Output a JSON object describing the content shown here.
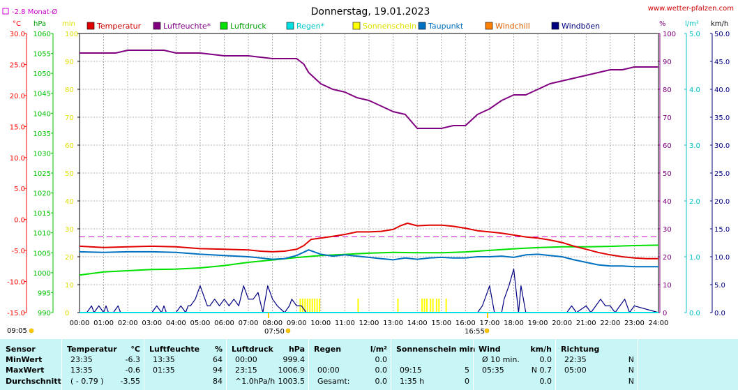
{
  "header": {
    "title": "Donnerstag, 19.01.2023",
    "website": "www.wetter-pfalzen.com",
    "month_avg_label": "-2.8 Monat-Ø"
  },
  "units": {
    "celsius": "°C",
    "hpa": "hPa",
    "min": "min",
    "percent": "%",
    "lm2": "l/m²",
    "kmh": "km/h"
  },
  "colors": {
    "Temperatur": "#e00000",
    "Luftfeuchte": "#800080",
    "Luftdruck": "#00e000",
    "Regen": "#00e0e0",
    "Sonnenschein": "#ffff00",
    "Taupunkt": "#0070c0",
    "Windchill": "#ff8000",
    "Windboeen": "#000080"
  },
  "chart_data": {
    "type": "line",
    "title": "Donnerstag, 19.01.2023",
    "legend": [
      "Temperatur",
      "Luftfeuchte*",
      "Luftdruck",
      "Regen*",
      "Sonnenschein",
      "Taupunkt",
      "Windchill",
      "Windböen"
    ],
    "x_ticks": [
      "00:00",
      "01:00",
      "02:00",
      "03:00",
      "04:00",
      "05:00",
      "06:00",
      "07:00",
      "08:00",
      "09:00",
      "10:00",
      "11:00",
      "12:00",
      "13:00",
      "14:00",
      "15:00",
      "16:00",
      "17:00",
      "18:00",
      "19:00",
      "20:00",
      "21:00",
      "22:00",
      "23:00",
      "24:00"
    ],
    "axes": {
      "celsius": {
        "range": [
          -15,
          30
        ],
        "ticks": [
          "30.0",
          "25.0",
          "20.0",
          "15.0",
          "10.0",
          "5.0",
          "0.0",
          "-5.0",
          "-10.0",
          "-15.0"
        ]
      },
      "hpa": {
        "range": [
          990,
          1060
        ],
        "ticks": [
          "1060",
          "1055",
          "1050",
          "1045",
          "1040",
          "1035",
          "1030",
          "1025",
          "1020",
          "1015",
          "1010",
          "1005",
          "1000",
          "995",
          "990"
        ]
      },
      "min": {
        "range": [
          0,
          100
        ],
        "ticks": [
          "100",
          "90",
          "80",
          "70",
          "60",
          "50",
          "40",
          "30",
          "20",
          "10",
          "0"
        ]
      },
      "percent": {
        "range": [
          0,
          100
        ],
        "ticks": [
          "100",
          "90",
          "80",
          "70",
          "60",
          "50",
          "40",
          "30",
          "20",
          "10",
          "0"
        ]
      },
      "lm2": {
        "range": [
          0,
          5
        ],
        "ticks": [
          "5.0",
          "4.0",
          "3.0",
          "2.0",
          "1.0",
          "0.0"
        ]
      },
      "kmh": {
        "range": [
          0,
          50
        ],
        "ticks": [
          "50.0",
          "45.0",
          "40.0",
          "35.0",
          "30.0",
          "25.0",
          "20.0",
          "15.0",
          "10.0",
          "5.0",
          "0.0"
        ]
      }
    },
    "month_avg_c": -2.8,
    "series": [
      {
        "name": "Temperatur",
        "axis": "celsius",
        "x": [
          0,
          1,
          2,
          3,
          4,
          5,
          6,
          7,
          7.5,
          8,
          8.5,
          9,
          9.3,
          9.6,
          10,
          10.5,
          11,
          11.5,
          12,
          12.5,
          13,
          13.3,
          13.6,
          14,
          14.5,
          15,
          15.5,
          16,
          16.5,
          17,
          17.5,
          18,
          18.5,
          19,
          19.5,
          20,
          20.5,
          21,
          21.5,
          22,
          22.5,
          23,
          23.5,
          24
        ],
        "y": [
          -4.3,
          -4.5,
          -4.4,
          -4.3,
          -4.4,
          -4.7,
          -4.8,
          -4.9,
          -5.1,
          -5.2,
          -5.1,
          -4.8,
          -4.2,
          -3.2,
          -3.0,
          -2.7,
          -2.4,
          -2.0,
          -2.0,
          -1.9,
          -1.6,
          -1.0,
          -0.6,
          -1.0,
          -0.9,
          -0.9,
          -1.1,
          -1.4,
          -1.8,
          -2.0,
          -2.2,
          -2.5,
          -2.8,
          -3.0,
          -3.3,
          -3.7,
          -4.3,
          -4.8,
          -5.3,
          -5.7,
          -6.0,
          -6.2,
          -6.3,
          -6.3
        ]
      },
      {
        "name": "Luftfeuchte*",
        "axis": "percent",
        "x": [
          0,
          1,
          1.5,
          2,
          2.5,
          3,
          3.5,
          4,
          5,
          6,
          7,
          8,
          9,
          9.3,
          9.5,
          10,
          10.5,
          11,
          11.5,
          12,
          12.5,
          13,
          13.5,
          14,
          14.5,
          15,
          15.5,
          16,
          16.5,
          17,
          17.5,
          18,
          18.5,
          19,
          19.5,
          20,
          20.5,
          21,
          21.5,
          22,
          22.5,
          23,
          24
        ],
        "y": [
          93,
          93,
          93,
          94,
          94,
          94,
          94,
          93,
          93,
          92,
          92,
          91,
          91,
          89,
          86,
          82,
          80,
          79,
          77,
          76,
          74,
          72,
          71,
          66,
          66,
          66,
          67,
          67,
          71,
          73,
          76,
          78,
          78,
          80,
          82,
          83,
          84,
          85,
          86,
          87,
          87,
          88,
          88
        ]
      },
      {
        "name": "Luftdruck",
        "axis": "hpa",
        "x": [
          0,
          1,
          2,
          3,
          4,
          5,
          6,
          7,
          8,
          9,
          10,
          11,
          12,
          13,
          14,
          15,
          16,
          17,
          18,
          19,
          20,
          21,
          22,
          23,
          24
        ],
        "y": [
          999.4,
          1000.2,
          1000.5,
          1000.8,
          1000.9,
          1001.2,
          1001.8,
          1002.6,
          1003.2,
          1003.8,
          1004.3,
          1004.6,
          1004.9,
          1005.1,
          1005.0,
          1005.0,
          1005.2,
          1005.6,
          1006.0,
          1006.3,
          1006.5,
          1006.5,
          1006.6,
          1006.8,
          1006.9
        ]
      },
      {
        "name": "Regen*",
        "axis": "lm2",
        "x": [
          0,
          24
        ],
        "y": [
          0,
          0
        ]
      },
      {
        "name": "Taupunkt",
        "axis": "celsius",
        "x": [
          0,
          1,
          2,
          3,
          4,
          5,
          6,
          7,
          7.5,
          8,
          8.5,
          9,
          9.5,
          10,
          10.5,
          11,
          11.5,
          12,
          12.5,
          13,
          13.5,
          14,
          14.5,
          15,
          15.5,
          16,
          16.5,
          17,
          17.5,
          18,
          18.5,
          19,
          19.5,
          20,
          20.5,
          21,
          21.5,
          22,
          22.5,
          23,
          24
        ],
        "y": [
          -5.2,
          -5.3,
          -5.2,
          -5.2,
          -5.3,
          -5.6,
          -5.8,
          -6.0,
          -6.2,
          -6.4,
          -6.3,
          -5.8,
          -4.9,
          -5.6,
          -5.9,
          -5.7,
          -5.9,
          -6.1,
          -6.3,
          -6.5,
          -6.2,
          -6.4,
          -6.2,
          -6.1,
          -6.2,
          -6.2,
          -6.0,
          -6.0,
          -5.9,
          -6.1,
          -5.7,
          -5.6,
          -5.8,
          -6.0,
          -6.5,
          -6.9,
          -7.3,
          -7.5,
          -7.5,
          -7.6,
          -7.6
        ]
      },
      {
        "name": "Windböen",
        "axis": "kmh",
        "x": [
          0,
          0.3,
          0.5,
          0.6,
          0.8,
          1.0,
          1.1,
          1.2,
          1.4,
          1.6,
          1.7,
          1.9,
          2.0,
          2.5,
          3.0,
          3.2,
          3.4,
          3.5,
          3.6,
          4.0,
          4.2,
          4.4,
          4.5,
          4.6,
          4.8,
          5.0,
          5.2,
          5.3,
          5.4,
          5.6,
          5.8,
          6.0,
          6.2,
          6.4,
          6.6,
          6.8,
          7.0,
          7.2,
          7.4,
          7.6,
          7.8,
          8.0,
          8.2,
          8.5,
          8.7,
          8.8,
          9.0,
          9.2,
          9.4,
          10,
          16.5,
          16.7,
          16.8,
          16.9,
          17.0,
          17.2,
          17.5,
          17.6,
          17.8,
          18.0,
          18.2,
          18.3,
          18.5,
          18.7,
          19.0,
          20.2,
          20.4,
          20.6,
          21.0,
          21.2,
          21.4,
          21.6,
          21.8,
          22.0,
          22.2,
          22.4,
          22.6,
          22.8,
          23.0,
          24
        ],
        "y": [
          0,
          0,
          1.2,
          0,
          1.2,
          0,
          1.2,
          0,
          0,
          1.2,
          0,
          0,
          0,
          0,
          0,
          1.2,
          0,
          1.2,
          0,
          0,
          1.2,
          0,
          1.2,
          1.2,
          2.4,
          4.8,
          2.4,
          1.2,
          1.2,
          2.4,
          1.2,
          2.4,
          1.2,
          2.4,
          1.2,
          4.8,
          2.4,
          2.4,
          3.6,
          0,
          4.8,
          2.4,
          1.2,
          0,
          1.2,
          2.4,
          1.2,
          1.2,
          0,
          0,
          0,
          1.2,
          2.4,
          3.6,
          4.8,
          0,
          0,
          2.4,
          4.8,
          7.8,
          0,
          4.8,
          0,
          0,
          0,
          0,
          1.2,
          0,
          1.2,
          0,
          1.2,
          2.4,
          1.2,
          1.2,
          0,
          1.2,
          2.4,
          0,
          1.2,
          0
        ]
      }
    ],
    "sunshine_bars": [
      9.15,
      9.25,
      9.35,
      9.45,
      9.55,
      9.65,
      9.75,
      9.85,
      9.95,
      11.55,
      13.2,
      14.2,
      14.3,
      14.4,
      14.55,
      14.65,
      14.8,
      14.9,
      15.2
    ],
    "sunrise": "07:50",
    "sunset": "16:55",
    "sunshine_markers": {
      "left": "09:05",
      "sunrise": "07:50",
      "sunset": "16:55"
    }
  },
  "stats": {
    "sensor": {
      "header": "Sensor",
      "rows": [
        "MinWert",
        "MaxWert",
        "Durchschnitt"
      ]
    },
    "temperatur": {
      "header": "Temperatur",
      "unit": "°C",
      "rows": [
        {
          "time": "23:35",
          "value": "-6.3"
        },
        {
          "time": "13:35",
          "value": "-0.6"
        },
        {
          "time": "( - 0.79 )",
          "value": "-3.55"
        }
      ]
    },
    "luftfeuchte": {
      "header": "Luftfeuchte",
      "unit": "%",
      "rows": [
        {
          "time": "13:35",
          "value": "64"
        },
        {
          "time": "01:35",
          "value": "94"
        },
        {
          "time": "",
          "value": "84"
        }
      ]
    },
    "luftdruck": {
      "header": "Luftdruck",
      "unit": "hPa",
      "rows": [
        {
          "time": "00:00",
          "value": "999.4"
        },
        {
          "time": "23:15",
          "value": "1006.9"
        },
        {
          "time": "^1.0hPa/h",
          "value": "1003.5"
        }
      ]
    },
    "regen": {
      "header": "Regen",
      "unit": "l/m²",
      "rows": [
        {
          "time": "",
          "value": "0.0"
        },
        {
          "time": "00:00",
          "value": "0.0"
        },
        {
          "time": "Gesamt:",
          "value": "0.0"
        }
      ]
    },
    "sonnenschein": {
      "header": "Sonnenschein min",
      "rows": [
        {
          "time": "",
          "value": ""
        },
        {
          "time": "09:15",
          "value": "5"
        },
        {
          "time": "1:35 h",
          "value": "0"
        }
      ]
    },
    "wind": {
      "header": "Wind",
      "unit": "km/h",
      "rows": [
        {
          "time": "Ø 10 min.",
          "value": "0.0"
        },
        {
          "time": "05:35",
          "value": "N 0.7"
        },
        {
          "time": "",
          "value": "0.0"
        }
      ]
    },
    "richtung": {
      "header": "Richtung",
      "rows": [
        {
          "time": "22:35",
          "value": "N"
        },
        {
          "time": "05:00",
          "value": "N"
        },
        {
          "time": "",
          "value": "N"
        }
      ]
    }
  }
}
